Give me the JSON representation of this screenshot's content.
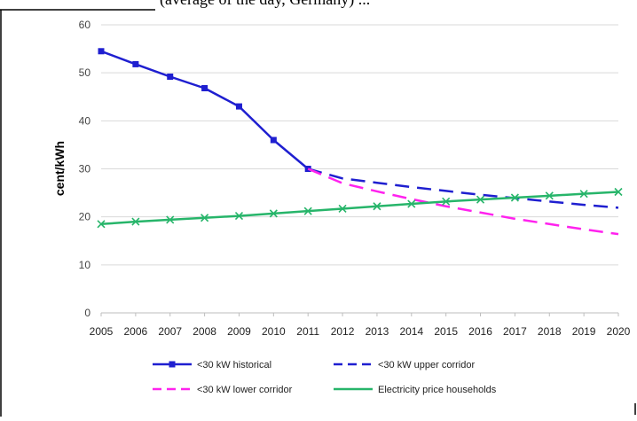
{
  "caption_fragment": "(average of the day, Germany) ...",
  "chart_data": {
    "type": "line",
    "x": [
      2005,
      2006,
      2007,
      2008,
      2009,
      2010,
      2011,
      2012,
      2013,
      2014,
      2015,
      2016,
      2017,
      2018,
      2019,
      2020
    ],
    "xlabel": "",
    "ylabel": "cent/kWh",
    "ylim": [
      0,
      60
    ],
    "yticks": [
      0,
      10,
      20,
      30,
      40,
      50,
      60
    ],
    "grid": "horizontal",
    "legend_position": "bottom",
    "series": [
      {
        "name": "<30 kW historical",
        "color": "#1f1fd0",
        "style": "solid-square-markers",
        "x": [
          2005,
          2006,
          2007,
          2008,
          2009,
          2010,
          2011
        ],
        "values": [
          54.5,
          51.8,
          49.2,
          46.8,
          43.0,
          36.0,
          30.0
        ]
      },
      {
        "name": "<30 kW upper corridor",
        "color": "#1f1fd0",
        "style": "dashed",
        "x": [
          2011,
          2012,
          2013,
          2014,
          2015,
          2016,
          2017,
          2018,
          2019,
          2020
        ],
        "values": [
          30.0,
          28.0,
          27.1,
          26.2,
          25.4,
          24.6,
          23.9,
          23.2,
          22.5,
          21.9
        ]
      },
      {
        "name": "<30 kW lower corridor",
        "color": "#ff22ee",
        "style": "dashed",
        "x": [
          2011,
          2012,
          2013,
          2014,
          2015,
          2016,
          2017,
          2018,
          2019,
          2020
        ],
        "values": [
          30.0,
          27.0,
          25.3,
          23.7,
          22.2,
          20.9,
          19.6,
          18.5,
          17.4,
          16.4
        ]
      },
      {
        "name": "Electricity price households",
        "color": "#27b56a",
        "style": "solid-x-markers",
        "x": [
          2005,
          2006,
          2007,
          2008,
          2009,
          2010,
          2011,
          2012,
          2013,
          2014,
          2015,
          2016,
          2017,
          2018,
          2019,
          2020
        ],
        "values": [
          18.5,
          19.0,
          19.4,
          19.8,
          20.2,
          20.7,
          21.2,
          21.7,
          22.2,
          22.7,
          23.2,
          23.6,
          24.0,
          24.4,
          24.8,
          25.2
        ]
      }
    ]
  }
}
